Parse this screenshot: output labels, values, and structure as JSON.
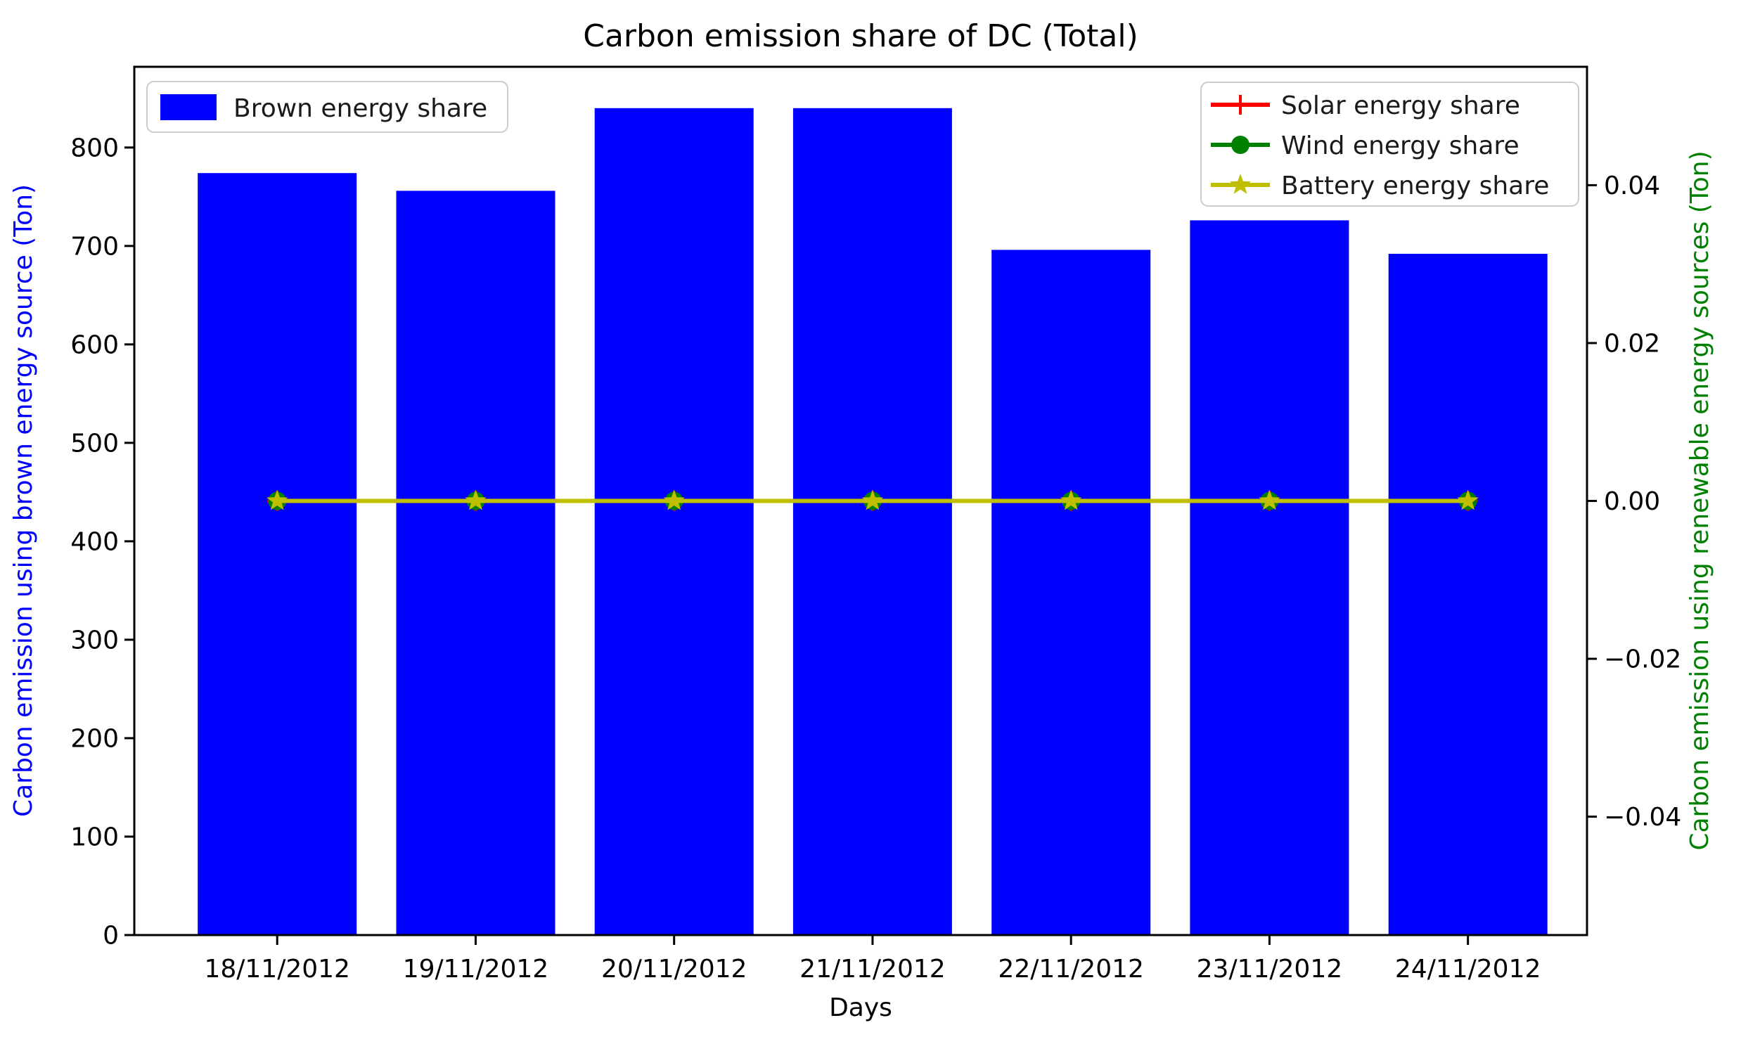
{
  "figure": {
    "background": "#ffffff"
  },
  "chart_data": {
    "type": "bar",
    "title": "Carbon emission share of DC (Total)",
    "xlabel": "Days",
    "ylabel_left": "Carbon emission using brown energy source (Ton)",
    "ylabel_right": "Carbon emission using renewable energy sources (Ton)",
    "categories": [
      "18/11/2012",
      "19/11/2012",
      "20/11/2012",
      "21/11/2012",
      "22/11/2012",
      "23/11/2012",
      "24/11/2012"
    ],
    "series": [
      {
        "name": "Brown energy share",
        "type": "bar",
        "axis": "left",
        "color": "#0000ff",
        "values": [
          774,
          756,
          840,
          840,
          696,
          726,
          692
        ]
      },
      {
        "name": "Solar energy share",
        "type": "line",
        "axis": "right",
        "color": "#ff0000",
        "marker": "plus",
        "values": [
          0,
          0,
          0,
          0,
          0,
          0,
          0
        ]
      },
      {
        "name": "Wind energy share",
        "type": "line",
        "axis": "right",
        "color": "#008000",
        "marker": "circle",
        "values": [
          0,
          0,
          0,
          0,
          0,
          0,
          0
        ]
      },
      {
        "name": "Battery energy share",
        "type": "line",
        "axis": "right",
        "color": "#bfbf00",
        "marker": "star",
        "values": [
          0,
          0,
          0,
          0,
          0,
          0,
          0
        ]
      }
    ],
    "axes": {
      "left": {
        "ticks": [
          0,
          100,
          200,
          300,
          400,
          500,
          600,
          700,
          800
        ],
        "lim": [
          0,
          882
        ],
        "label_color": "#0000ff",
        "tick_label_color": "#000000"
      },
      "right": {
        "ticks": [
          0.04,
          0.02,
          0.0,
          -0.02,
          -0.04
        ],
        "lim": [
          -0.055,
          0.055
        ],
        "label_color": "#008000",
        "tick_label_color": "#000000"
      }
    },
    "grid": false,
    "legend_left_position": "upper left",
    "legend_right_position": "upper right",
    "spine_color": "#000000",
    "legend_border_color": "#cccccc"
  }
}
